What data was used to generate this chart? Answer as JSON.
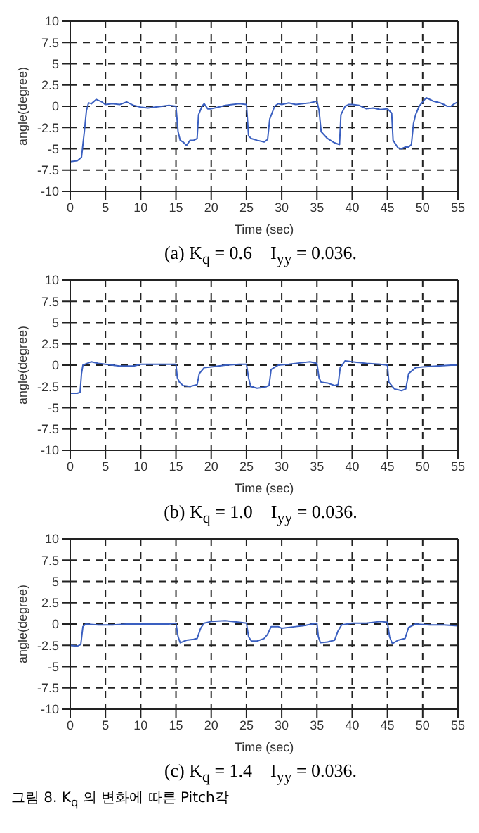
{
  "chart_data": [
    {
      "type": "line",
      "title": "(a) K$_{q}$ = 0.6    I$_{yy}$ = 0.036.",
      "xlabel": "Time (sec)",
      "ylabel": "angle(degree)",
      "xlim": [
        0,
        55
      ],
      "xticks": [
        0,
        5,
        10,
        15,
        20,
        25,
        30,
        35,
        40,
        45,
        50,
        55
      ],
      "ylim": [
        -10,
        10
      ],
      "yticks": [
        -10,
        -7.5,
        -5,
        -2.5,
        0,
        2.5,
        5,
        7.5,
        10
      ],
      "grid": true,
      "legend": false,
      "marker": "none",
      "line_style": "solid",
      "series": [
        {
          "color": "#3a5fc0",
          "x": [
            0,
            1,
            1.6,
            2,
            2.3,
            2.6,
            3,
            3.7,
            4.5,
            5,
            6,
            7,
            8,
            9,
            10,
            11,
            12,
            13,
            14,
            15,
            15.3,
            15.6,
            16,
            16.5,
            17,
            17.5,
            18,
            18.2,
            18.7,
            19,
            19.5,
            20,
            21,
            22,
            23,
            24,
            25,
            25.3,
            25.7,
            26.5,
            27.5,
            28,
            28.3,
            29,
            29.5,
            30,
            31,
            32,
            33,
            34,
            35,
            35.3,
            35.6,
            36.5,
            37.5,
            38.2,
            38.4,
            39,
            39.5,
            40,
            41,
            42,
            43,
            44,
            45,
            45.6,
            45.8,
            46.5,
            47,
            47.5,
            48,
            48.4,
            48.7,
            49,
            49.5,
            50,
            50.5,
            51.5,
            52.5,
            53.5,
            54,
            54.5,
            55
          ],
          "values": [
            -6.5,
            -6.4,
            -6,
            -3,
            -0.5,
            0.4,
            0.3,
            0.8,
            0.5,
            0.2,
            0.3,
            0.2,
            0.5,
            0.1,
            -0.1,
            -0.2,
            -0.1,
            0,
            0.1,
            0,
            -3,
            -4,
            -4.2,
            -4.6,
            -4,
            -4,
            -3.8,
            -1,
            0,
            0.3,
            -0.3,
            -0.3,
            -0.1,
            0.1,
            0.2,
            0.3,
            0.2,
            -3.5,
            -3.8,
            -4,
            -4.2,
            -3.9,
            -1.5,
            0,
            0.3,
            0.2,
            0.4,
            0.2,
            0.3,
            0.4,
            0.6,
            -0.5,
            -3,
            -3.8,
            -4.3,
            -4.5,
            -1,
            0,
            0.2,
            0.2,
            0.1,
            -0.3,
            -0.2,
            -0.4,
            -0.3,
            -0.8,
            -4,
            -4.9,
            -5,
            -4.8,
            -4.8,
            -4.5,
            -2,
            -1,
            0,
            0.5,
            1,
            0.6,
            0.4,
            0,
            0,
            0.3,
            0.5
          ]
        }
      ]
    },
    {
      "type": "line",
      "title": "(b) K$_{q}$ = 1.0    I$_{yy}$ = 0.036.",
      "xlabel": "Time (sec)",
      "ylabel": "angle(degree)",
      "xlim": [
        0,
        55
      ],
      "xticks": [
        0,
        5,
        10,
        15,
        20,
        25,
        30,
        35,
        40,
        45,
        50,
        55
      ],
      "ylim": [
        -10,
        10
      ],
      "yticks": [
        -10,
        -7.5,
        -5,
        -2.5,
        0,
        2.5,
        5,
        7.5,
        10
      ],
      "grid": true,
      "legend": false,
      "marker": "none",
      "line_style": "solid",
      "series": [
        {
          "color": "#3a5fc0",
          "x": [
            0,
            1,
            1.4,
            1.6,
            1.8,
            3,
            4,
            5,
            7,
            9,
            10,
            12,
            14,
            15,
            15.2,
            15.5,
            16,
            17,
            18,
            18.3,
            19,
            20,
            22,
            24,
            25,
            25.3,
            25.6,
            26.5,
            27.5,
            28.2,
            28.5,
            29.5,
            31,
            33,
            34,
            35,
            35.3,
            35.6,
            36.5,
            37.5,
            38,
            38.3,
            39,
            40,
            41,
            42,
            44,
            45,
            45.2,
            46,
            47,
            47.6,
            48,
            49,
            50,
            52,
            54,
            55
          ],
          "values": [
            -3.3,
            -3.3,
            -3.2,
            -1,
            0,
            0.4,
            0.2,
            0.1,
            -0.1,
            -0.1,
            0.1,
            0.1,
            0.1,
            0.1,
            -1.5,
            -2,
            -2.4,
            -2.5,
            -2.3,
            -1,
            -0.3,
            -0.2,
            0,
            0.1,
            0.1,
            -1.5,
            -2.5,
            -2.7,
            -2.6,
            -2.4,
            -0.5,
            0,
            0.1,
            0.3,
            0.4,
            0.2,
            -1.5,
            -2,
            -2.1,
            -2.4,
            -2.3,
            -0.3,
            0.5,
            0.4,
            0.3,
            0.2,
            0.1,
            0,
            -2,
            -2.8,
            -3,
            -2.8,
            -1,
            -0.3,
            -0.2,
            -0.1,
            0,
            0
          ]
        }
      ]
    },
    {
      "type": "line",
      "title": "(c) K$_{q}$ = 1.4    I$_{yy}$ = 0.036.",
      "xlabel": "Time (sec)",
      "ylabel": "angle(degree)",
      "xlim": [
        0,
        55
      ],
      "xticks": [
        0,
        5,
        10,
        15,
        20,
        25,
        30,
        35,
        40,
        45,
        50,
        55
      ],
      "ylim": [
        -10,
        10
      ],
      "yticks": [
        -10,
        -7.5,
        -5,
        -2.5,
        0,
        2.5,
        5,
        7.5,
        10
      ],
      "grid": true,
      "legend": false,
      "marker": "none",
      "line_style": "solid",
      "annotations": [
        "그림 8. K$_{q}$ 의 변화에 따른 Pitch각"
      ],
      "series": [
        {
          "color": "#3a5fc0",
          "x": [
            0,
            1,
            1.5,
            1.8,
            2.2,
            4,
            6,
            8,
            10,
            12,
            14,
            15,
            15.3,
            15.6,
            16.5,
            17.5,
            18,
            18.5,
            19,
            20,
            22,
            24,
            25,
            25.3,
            25.7,
            26.5,
            27.5,
            28,
            28.5,
            29.5,
            30,
            32,
            33,
            35,
            35.2,
            35.5,
            36.5,
            37.5,
            38,
            38.5,
            40,
            42,
            44,
            45,
            45.3,
            45.7,
            46.5,
            47.5,
            48,
            49,
            51,
            53,
            55
          ],
          "values": [
            -2.5,
            -2.6,
            -2.4,
            -0.3,
            0,
            -0.1,
            -0.1,
            0,
            0,
            0,
            0,
            0.1,
            -1.5,
            -2.2,
            -1.9,
            -1.8,
            -1.7,
            -0.5,
            0.1,
            0.3,
            0.4,
            0.2,
            0.1,
            -1.5,
            -2,
            -2,
            -1.7,
            -1.2,
            -0.3,
            -0.3,
            -0.5,
            -0.3,
            -0.2,
            0.1,
            -1.5,
            -2.2,
            -2.1,
            -1.9,
            -0.8,
            -0.1,
            0.1,
            0.1,
            0.3,
            0.2,
            -1.5,
            -2.3,
            -1.9,
            -1.7,
            -0.4,
            0,
            -0.1,
            -0.1,
            -0.2
          ]
        }
      ]
    }
  ]
}
